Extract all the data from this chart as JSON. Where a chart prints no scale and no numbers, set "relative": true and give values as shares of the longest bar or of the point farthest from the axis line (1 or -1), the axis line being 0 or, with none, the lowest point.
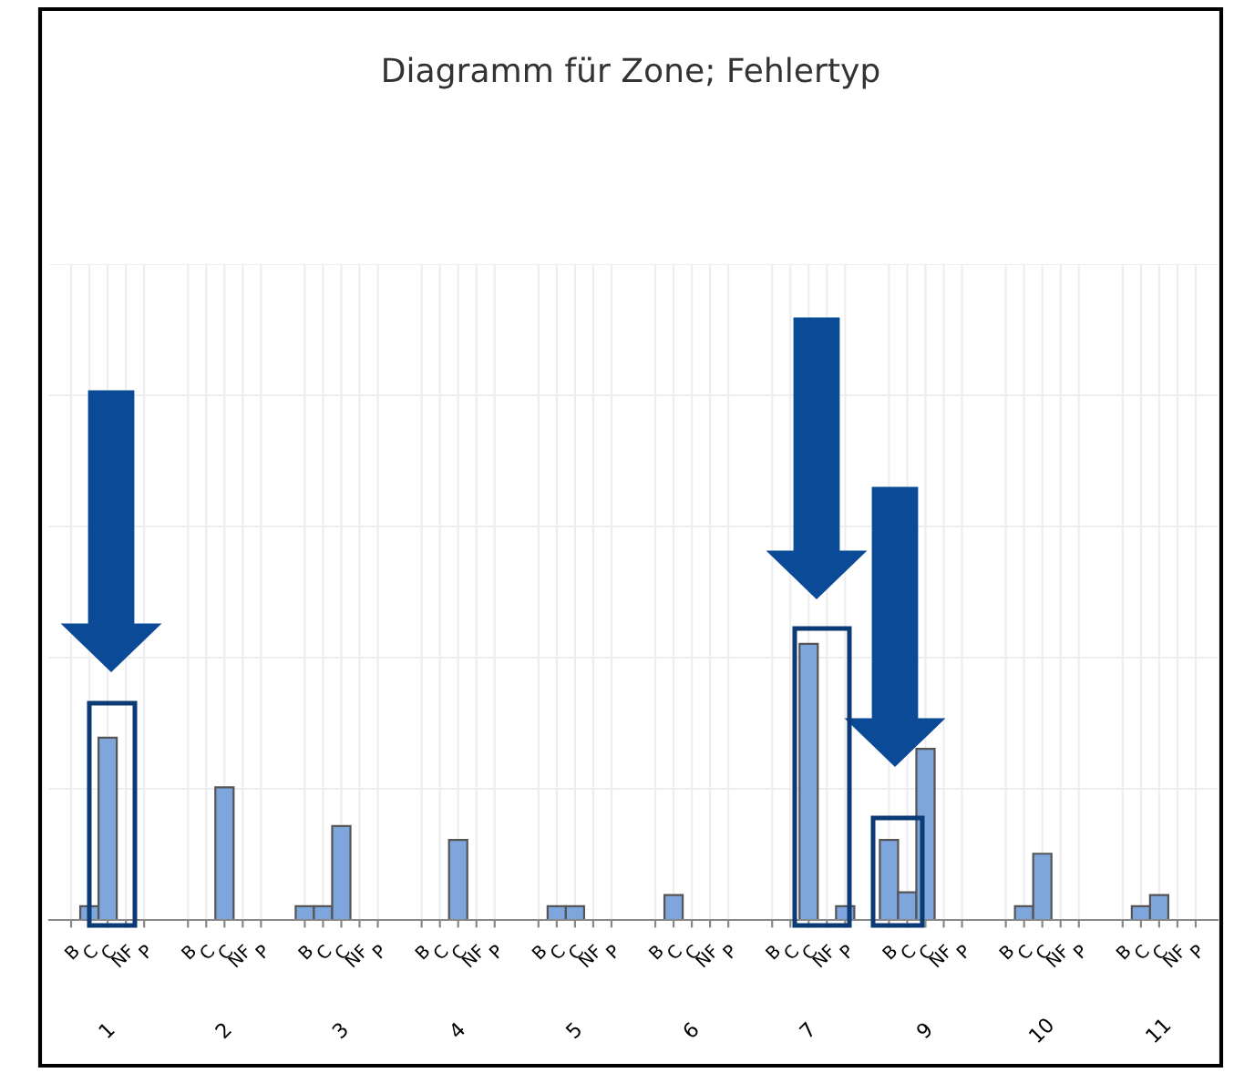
{
  "chart_data": {
    "type": "bar",
    "title": "Diagramm für Zone; Fehlertyp",
    "relative": true,
    "grid": true,
    "categories": [
      "1",
      "2",
      "3",
      "4",
      "5",
      "6",
      "7",
      "9",
      "10",
      "11"
    ],
    "series": [
      {
        "name": "B",
        "color": "#7ea6dc",
        "values": [
          0,
          0,
          0.05,
          0,
          0,
          0,
          0,
          0.29,
          0,
          0
        ]
      },
      {
        "name": "C",
        "color": "#7ea6dc",
        "values": [
          0.05,
          0,
          0.05,
          0,
          0.05,
          0.09,
          0,
          0.1,
          0.05,
          0.05
        ]
      },
      {
        "name": "C",
        "color": "#7ea6dc",
        "values": [
          0.66,
          0.48,
          0.34,
          0.29,
          0.05,
          0,
          1,
          0.62,
          0.24,
          0.09
        ]
      },
      {
        "name": "NF",
        "color": "#7ea6dc",
        "values": [
          0,
          0,
          0,
          0,
          0,
          0,
          0,
          0,
          0,
          0
        ]
      },
      {
        "name": "P",
        "color": "#7ea6dc",
        "values": [
          0,
          0,
          0,
          0,
          0,
          0,
          0.05,
          0,
          0,
          0
        ]
      }
    ]
  }
}
